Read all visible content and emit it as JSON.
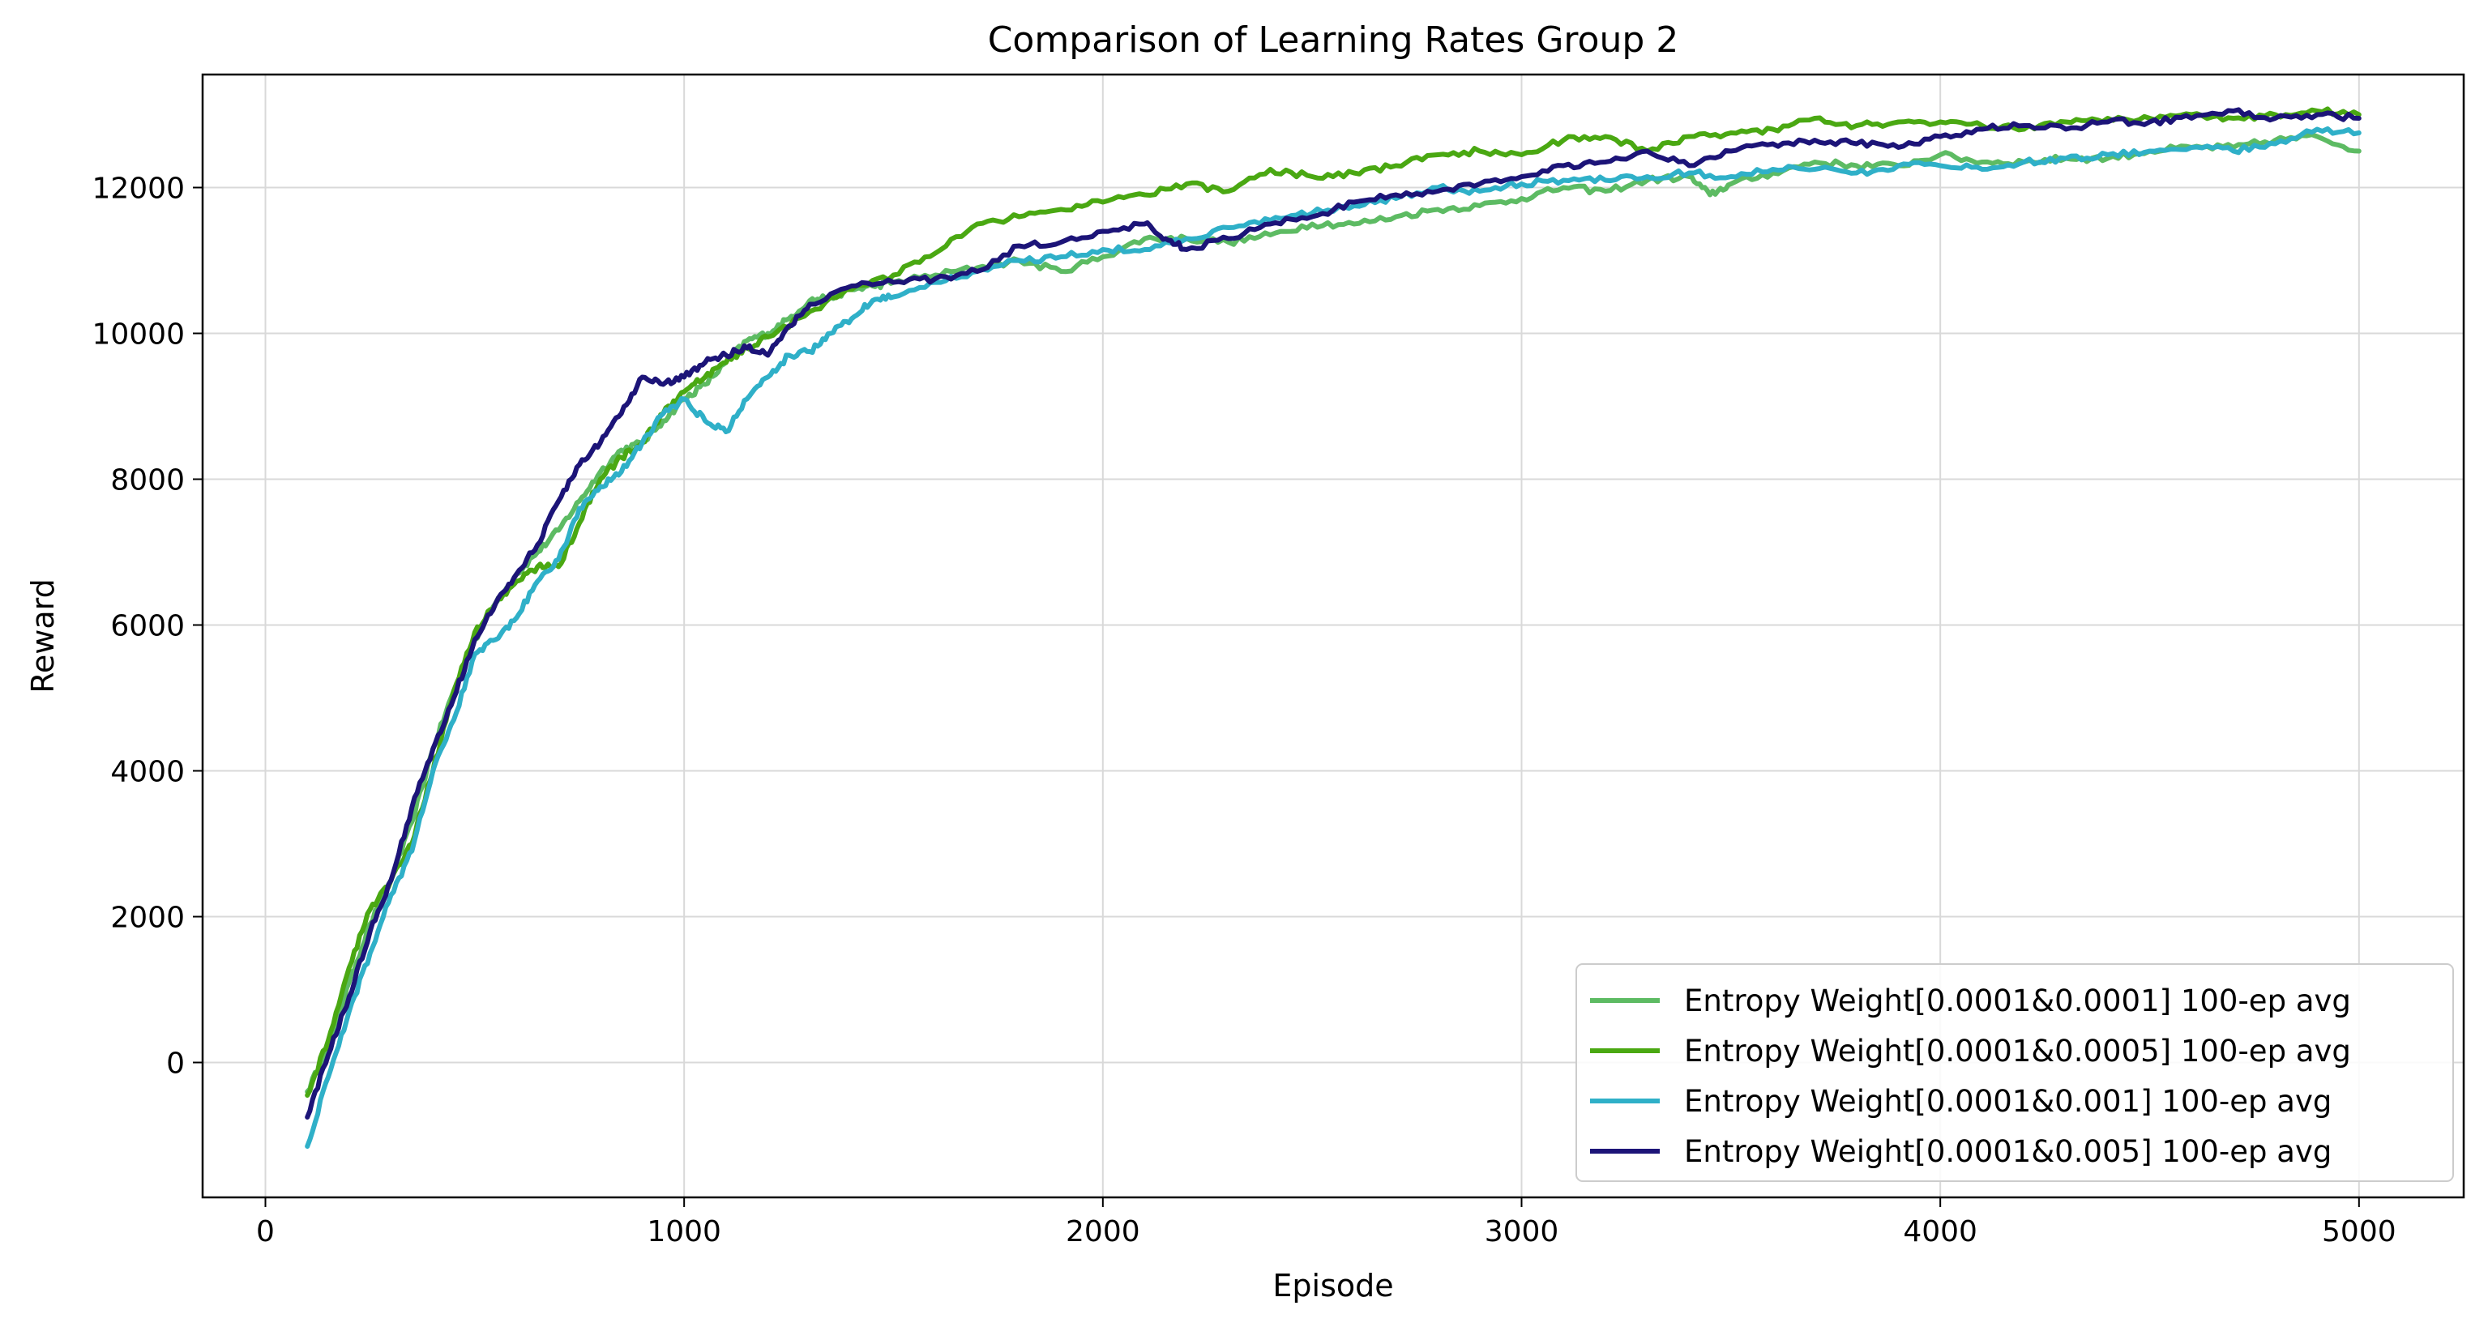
{
  "chart_data": {
    "type": "line",
    "title": "Comparison of Learning Rates Group 2",
    "xlabel": "Episode",
    "ylabel": "Reward",
    "xlim": [
      -150,
      5250
    ],
    "ylim": [
      -1850,
      13550
    ],
    "xticks": [
      0,
      1000,
      2000,
      3000,
      4000,
      5000
    ],
    "yticks": [
      0,
      2000,
      4000,
      6000,
      8000,
      10000,
      12000
    ],
    "grid": true,
    "legend_position": "lower-right",
    "series": [
      {
        "name": "Entropy Weight[0.0001&0.0001] 100-ep avg",
        "color": "#5dbb63",
        "points": [
          [
            100,
            -400
          ],
          [
            150,
            200
          ],
          [
            200,
            1100
          ],
          [
            250,
            1900
          ],
          [
            300,
            2500
          ],
          [
            350,
            3300
          ],
          [
            400,
            4300
          ],
          [
            450,
            5100
          ],
          [
            500,
            5800
          ],
          [
            550,
            6300
          ],
          [
            600,
            6700
          ],
          [
            650,
            7000
          ],
          [
            700,
            7300
          ],
          [
            750,
            7700
          ],
          [
            800,
            8100
          ],
          [
            850,
            8400
          ],
          [
            900,
            8500
          ],
          [
            950,
            8800
          ],
          [
            1000,
            9100
          ],
          [
            1050,
            9300
          ],
          [
            1100,
            9600
          ],
          [
            1150,
            9900
          ],
          [
            1200,
            10000
          ],
          [
            1250,
            10200
          ],
          [
            1300,
            10450
          ],
          [
            1350,
            10500
          ],
          [
            1400,
            10600
          ],
          [
            1450,
            10650
          ],
          [
            1500,
            10700
          ],
          [
            1600,
            10800
          ],
          [
            1700,
            10900
          ],
          [
            1800,
            11000
          ],
          [
            1900,
            10850
          ],
          [
            2000,
            11050
          ],
          [
            2100,
            11300
          ],
          [
            2200,
            11300
          ],
          [
            2300,
            11250
          ],
          [
            2400,
            11350
          ],
          [
            2500,
            11500
          ],
          [
            2600,
            11500
          ],
          [
            2700,
            11600
          ],
          [
            2800,
            11700
          ],
          [
            2900,
            11750
          ],
          [
            3000,
            11850
          ],
          [
            3100,
            12000
          ],
          [
            3200,
            11950
          ],
          [
            3300,
            12100
          ],
          [
            3400,
            12150
          ],
          [
            3450,
            11900
          ],
          [
            3500,
            12050
          ],
          [
            3600,
            12200
          ],
          [
            3700,
            12350
          ],
          [
            3800,
            12300
          ],
          [
            3900,
            12300
          ],
          [
            4000,
            12450
          ],
          [
            4100,
            12350
          ],
          [
            4200,
            12350
          ],
          [
            4300,
            12400
          ],
          [
            4400,
            12400
          ],
          [
            4500,
            12500
          ],
          [
            4600,
            12550
          ],
          [
            4700,
            12550
          ],
          [
            4800,
            12650
          ],
          [
            4900,
            12700
          ],
          [
            5000,
            12500
          ]
        ]
      },
      {
        "name": "Entropy Weight[0.0001&0.0005] 100-ep avg",
        "color": "#4aa812",
        "points": [
          [
            100,
            -450
          ],
          [
            150,
            300
          ],
          [
            200,
            1300
          ],
          [
            250,
            2100
          ],
          [
            300,
            2500
          ],
          [
            350,
            3000
          ],
          [
            400,
            4000
          ],
          [
            450,
            5100
          ],
          [
            500,
            5900
          ],
          [
            550,
            6300
          ],
          [
            600,
            6600
          ],
          [
            650,
            6800
          ],
          [
            700,
            6800
          ],
          [
            750,
            7400
          ],
          [
            800,
            8000
          ],
          [
            850,
            8300
          ],
          [
            900,
            8500
          ],
          [
            950,
            8900
          ],
          [
            1000,
            9200
          ],
          [
            1050,
            9400
          ],
          [
            1100,
            9600
          ],
          [
            1150,
            9800
          ],
          [
            1200,
            9950
          ],
          [
            1300,
            10300
          ],
          [
            1400,
            10600
          ],
          [
            1500,
            10800
          ],
          [
            1600,
            11100
          ],
          [
            1700,
            11500
          ],
          [
            1800,
            11600
          ],
          [
            1900,
            11700
          ],
          [
            2000,
            11800
          ],
          [
            2100,
            11900
          ],
          [
            2200,
            12050
          ],
          [
            2300,
            11950
          ],
          [
            2400,
            12250
          ],
          [
            2500,
            12150
          ],
          [
            2600,
            12200
          ],
          [
            2700,
            12300
          ],
          [
            2800,
            12450
          ],
          [
            2900,
            12500
          ],
          [
            3000,
            12450
          ],
          [
            3100,
            12650
          ],
          [
            3200,
            12700
          ],
          [
            3300,
            12500
          ],
          [
            3400,
            12700
          ],
          [
            3500,
            12750
          ],
          [
            3600,
            12800
          ],
          [
            3700,
            12950
          ],
          [
            3800,
            12850
          ],
          [
            3900,
            12900
          ],
          [
            4000,
            12900
          ],
          [
            4100,
            12850
          ],
          [
            4200,
            12800
          ],
          [
            4300,
            12900
          ],
          [
            4400,
            12950
          ],
          [
            4500,
            12950
          ],
          [
            4600,
            13000
          ],
          [
            4700,
            12950
          ],
          [
            4800,
            13000
          ],
          [
            4900,
            13050
          ],
          [
            5000,
            13000
          ]
        ]
      },
      {
        "name": "Entropy Weight[0.0001&0.001] 100-ep avg",
        "color": "#2fb0c8",
        "points": [
          [
            100,
            -1150
          ],
          [
            150,
            -200
          ],
          [
            200,
            700
          ],
          [
            250,
            1500
          ],
          [
            300,
            2300
          ],
          [
            350,
            2900
          ],
          [
            400,
            4000
          ],
          [
            450,
            4700
          ],
          [
            500,
            5600
          ],
          [
            550,
            5800
          ],
          [
            600,
            6100
          ],
          [
            650,
            6600
          ],
          [
            700,
            6900
          ],
          [
            750,
            7600
          ],
          [
            800,
            7900
          ],
          [
            850,
            8100
          ],
          [
            900,
            8500
          ],
          [
            950,
            8900
          ],
          [
            1000,
            9100
          ],
          [
            1050,
            8800
          ],
          [
            1100,
            8650
          ],
          [
            1150,
            9100
          ],
          [
            1200,
            9400
          ],
          [
            1250,
            9700
          ],
          [
            1300,
            9750
          ],
          [
            1350,
            10000
          ],
          [
            1400,
            10200
          ],
          [
            1450,
            10450
          ],
          [
            1500,
            10500
          ],
          [
            1600,
            10700
          ],
          [
            1700,
            10850
          ],
          [
            1800,
            11000
          ],
          [
            1900,
            11050
          ],
          [
            2000,
            11150
          ],
          [
            2100,
            11150
          ],
          [
            2200,
            11300
          ],
          [
            2300,
            11450
          ],
          [
            2400,
            11550
          ],
          [
            2500,
            11650
          ],
          [
            2600,
            11750
          ],
          [
            2700,
            11850
          ],
          [
            2800,
            12000
          ],
          [
            2900,
            11950
          ],
          [
            3000,
            12050
          ],
          [
            3100,
            12100
          ],
          [
            3200,
            12100
          ],
          [
            3300,
            12150
          ],
          [
            3400,
            12200
          ],
          [
            3500,
            12150
          ],
          [
            3600,
            12250
          ],
          [
            3700,
            12250
          ],
          [
            3800,
            12200
          ],
          [
            3900,
            12300
          ],
          [
            4000,
            12300
          ],
          [
            4100,
            12250
          ],
          [
            4200,
            12350
          ],
          [
            4300,
            12400
          ],
          [
            4400,
            12450
          ],
          [
            4500,
            12500
          ],
          [
            4600,
            12550
          ],
          [
            4700,
            12500
          ],
          [
            4800,
            12600
          ],
          [
            4900,
            12800
          ],
          [
            5000,
            12750
          ]
        ]
      },
      {
        "name": "Entropy Weight[0.0001&0.005] 100-ep avg",
        "color": "#1c1478",
        "points": [
          [
            100,
            -750
          ],
          [
            150,
            100
          ],
          [
            200,
            900
          ],
          [
            250,
            1800
          ],
          [
            300,
            2500
          ],
          [
            350,
            3500
          ],
          [
            400,
            4300
          ],
          [
            450,
            5000
          ],
          [
            500,
            5800
          ],
          [
            550,
            6300
          ],
          [
            600,
            6700
          ],
          [
            650,
            7100
          ],
          [
            700,
            7700
          ],
          [
            750,
            8200
          ],
          [
            800,
            8500
          ],
          [
            850,
            8900
          ],
          [
            900,
            9400
          ],
          [
            950,
            9300
          ],
          [
            1000,
            9400
          ],
          [
            1050,
            9600
          ],
          [
            1100,
            9700
          ],
          [
            1150,
            9800
          ],
          [
            1200,
            9700
          ],
          [
            1250,
            10100
          ],
          [
            1300,
            10400
          ],
          [
            1400,
            10650
          ],
          [
            1500,
            10700
          ],
          [
            1600,
            10750
          ],
          [
            1700,
            10850
          ],
          [
            1800,
            11200
          ],
          [
            1900,
            11250
          ],
          [
            2000,
            11400
          ],
          [
            2100,
            11500
          ],
          [
            2150,
            11300
          ],
          [
            2200,
            11150
          ],
          [
            2300,
            11300
          ],
          [
            2400,
            11500
          ],
          [
            2500,
            11600
          ],
          [
            2600,
            11800
          ],
          [
            2700,
            11900
          ],
          [
            2800,
            11950
          ],
          [
            2900,
            12050
          ],
          [
            3000,
            12150
          ],
          [
            3100,
            12300
          ],
          [
            3200,
            12350
          ],
          [
            3300,
            12500
          ],
          [
            3400,
            12300
          ],
          [
            3500,
            12500
          ],
          [
            3600,
            12600
          ],
          [
            3700,
            12650
          ],
          [
            3800,
            12600
          ],
          [
            3900,
            12550
          ],
          [
            4000,
            12700
          ],
          [
            4100,
            12800
          ],
          [
            4200,
            12850
          ],
          [
            4300,
            12800
          ],
          [
            4400,
            12900
          ],
          [
            4500,
            12900
          ],
          [
            4600,
            12950
          ],
          [
            4700,
            13050
          ],
          [
            4800,
            12950
          ],
          [
            4900,
            13000
          ],
          [
            5000,
            12950
          ]
        ]
      }
    ]
  }
}
